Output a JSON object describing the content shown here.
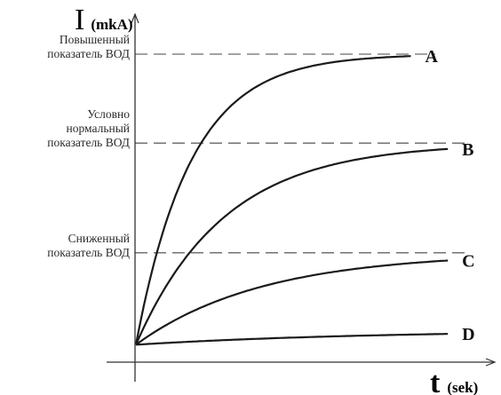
{
  "chart_data": {
    "type": "line",
    "y_axis": {
      "symbol": "I",
      "unit": "(mkA)"
    },
    "x_axis": {
      "symbol": "t",
      "unit": "(sek)"
    },
    "grid": false,
    "levels": [
      {
        "id": "high",
        "lines": [
          "Повышенный",
          "показатель ВОД"
        ],
        "y": 100
      },
      {
        "id": "normal",
        "lines": [
          "Условно",
          "нормальный",
          "показатель ВОД"
        ],
        "y": 70
      },
      {
        "id": "low",
        "lines": [
          "Сниженный",
          "показатель ВОД"
        ],
        "y": 33
      }
    ],
    "series": [
      {
        "name": "A",
        "start": 2,
        "plateau": 100,
        "rate": 0.048
      },
      {
        "name": "B",
        "start": 2,
        "plateau": 70,
        "rate": 0.03
      },
      {
        "name": "C",
        "start": 2,
        "plateau": 33,
        "rate": 0.021
      },
      {
        "name": "D",
        "start": 2,
        "plateau": 7,
        "rate": 0.011
      }
    ]
  }
}
